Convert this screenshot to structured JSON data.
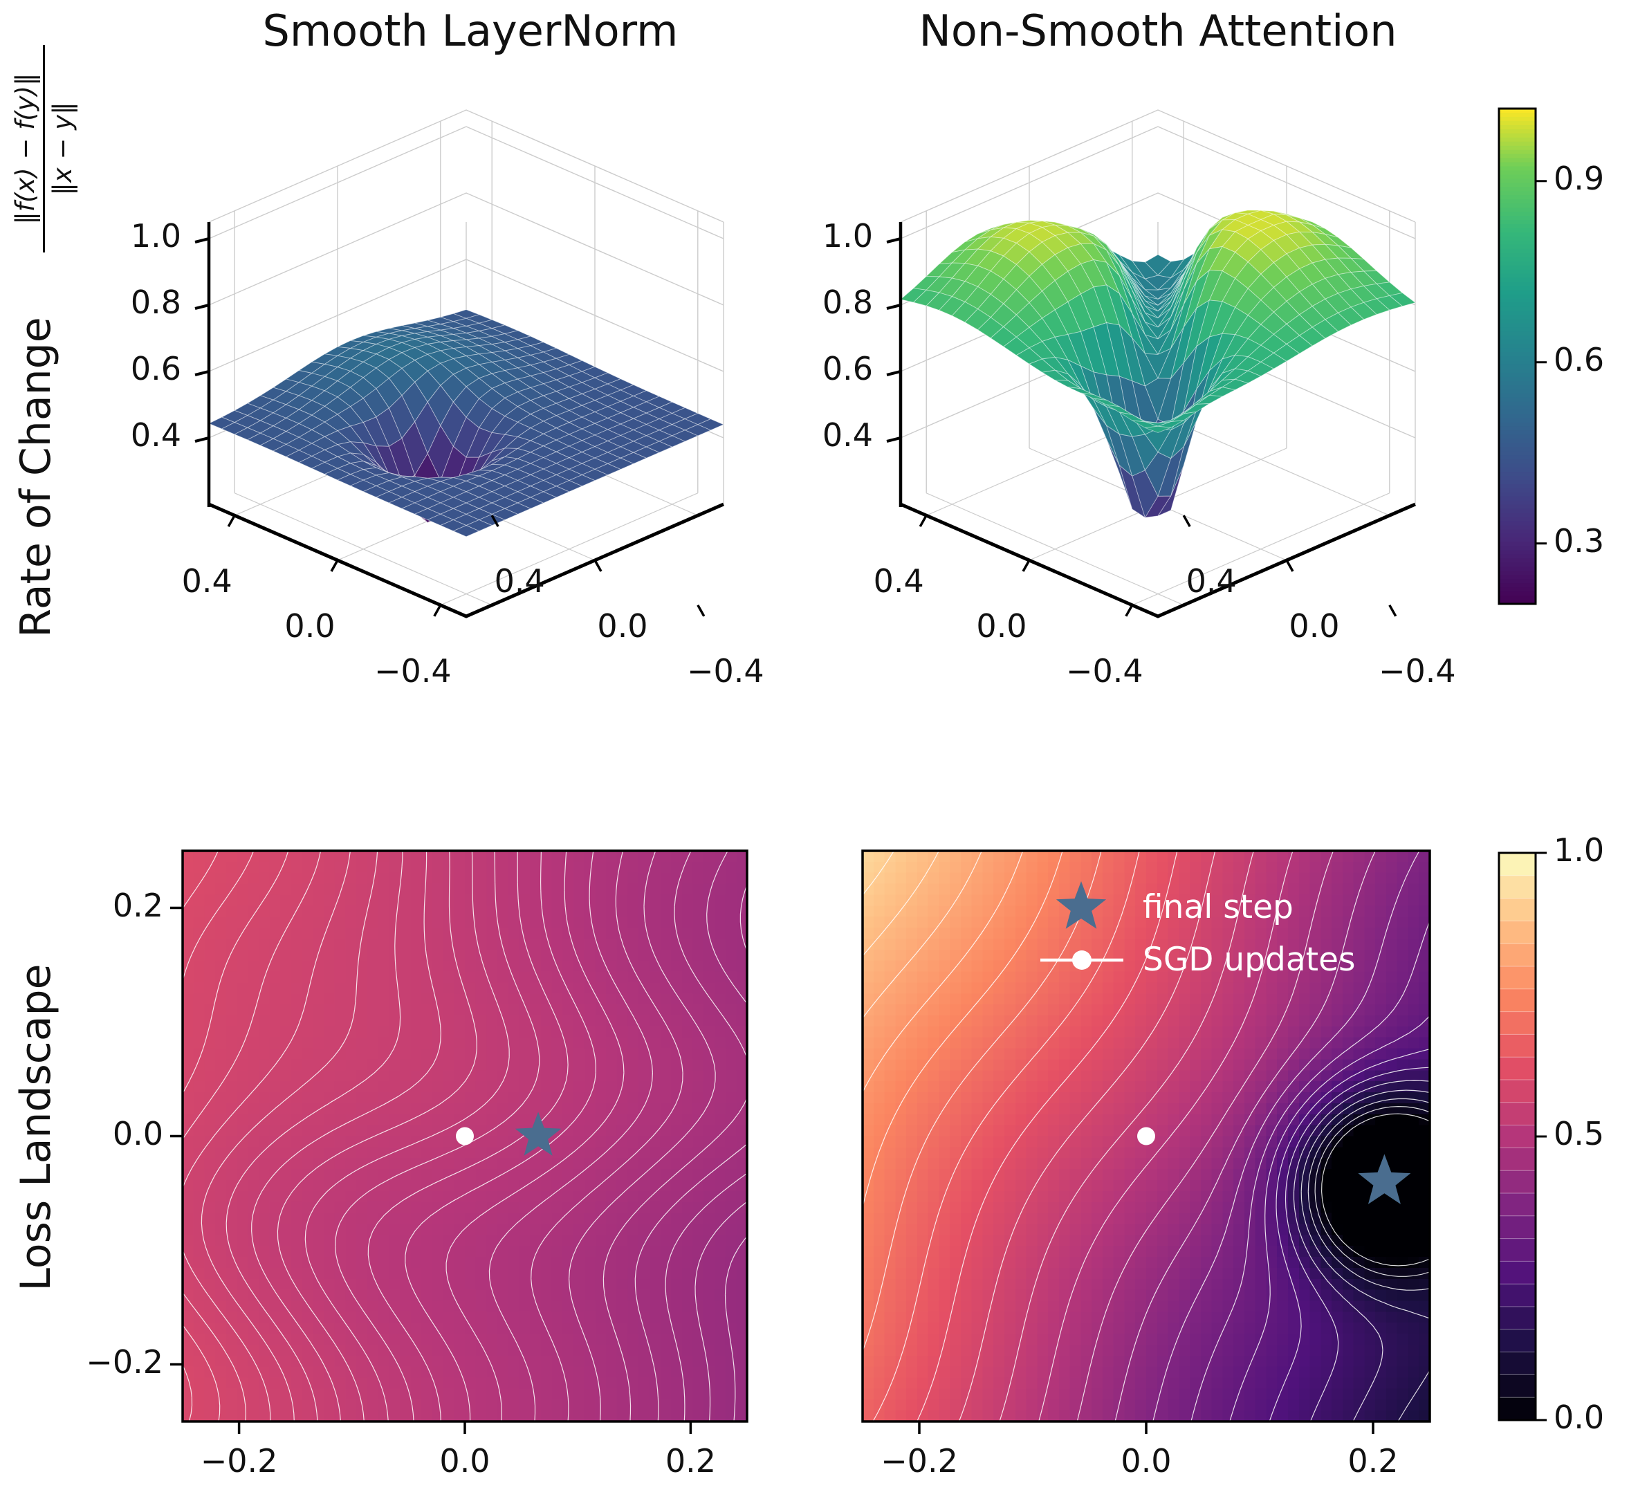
{
  "figure": {
    "background": "#ffffff",
    "row_labels": [
      {
        "id": "rate-of-change",
        "text": "Rate of Change"
      },
      {
        "id": "loss-landscape",
        "text": "Loss Landscape"
      }
    ],
    "formula": {
      "numerator": "‖f(x) − f(y)‖",
      "denominator": "‖x − y‖"
    }
  },
  "chart_data": [
    {
      "id": "surface-smooth-layernorm",
      "type": "surface",
      "title": "Smooth LayerNorm",
      "x_range": [
        -0.5,
        0.5
      ],
      "y_range": [
        -0.5,
        0.5
      ],
      "z_axis_range": [
        0.2,
        1.05
      ],
      "z_ticks": [
        1.0,
        0.8,
        0.6,
        0.4
      ],
      "z_tick_labels": [
        "1.0",
        "0.8",
        "0.6",
        "0.4"
      ],
      "x_tick_labels": [
        "0.4",
        "0.0",
        "−0.4"
      ],
      "y_tick_labels": [
        "−0.4",
        "0.0",
        "0.4"
      ],
      "colormap": "viridis",
      "color_norm": [
        0.2,
        1.02
      ],
      "mesh": 20,
      "z_observed_range": [
        0.18,
        0.55
      ],
      "model": {
        "base": 0.44,
        "clamp": [
          0.16,
          1.0
        ],
        "bumps": [
          {
            "x": 0.3,
            "y": 0.05,
            "amp": 0.1,
            "s2": 0.1
          },
          {
            "x": 0.02,
            "y": -0.12,
            "amp": -0.29,
            "s2": 0.02
          }
        ]
      }
    },
    {
      "id": "surface-nonsmooth-attention",
      "type": "surface",
      "title": "Non-Smooth Attention",
      "x_range": [
        -0.5,
        0.5
      ],
      "y_range": [
        -0.5,
        0.5
      ],
      "z_axis_range": [
        0.2,
        1.05
      ],
      "z_ticks": [
        1.0,
        0.8,
        0.6,
        0.4
      ],
      "z_tick_labels": [
        "1.0",
        "0.8",
        "0.6",
        "0.4"
      ],
      "x_tick_labels": [
        "0.4",
        "0.0",
        "−0.4"
      ],
      "y_tick_labels": [
        "−0.4",
        "0.0",
        "0.4"
      ],
      "colormap": "viridis",
      "color_norm": [
        0.2,
        1.02
      ],
      "mesh": 20,
      "z_observed_range": [
        0.3,
        0.99
      ],
      "model": {
        "base": 0.78,
        "clamp": [
          0.3,
          0.99
        ],
        "bumps": [
          {
            "x": 0.32,
            "y": -0.18,
            "amp": 0.2,
            "s2": 0.08
          },
          {
            "x": -0.1,
            "y": 0.28,
            "amp": 0.22,
            "s2": 0.1
          },
          {
            "x": -0.15,
            "y": -0.2,
            "amp": -0.42,
            "s2": 0.025
          },
          {
            "x": 0.45,
            "y": 0.45,
            "amp": -0.12,
            "s2": 0.06
          }
        ],
        "crease": {
          "amp": -0.3,
          "s2": 0.018,
          "mod_center": 0.1,
          "mod_s2": 0.5
        }
      }
    },
    {
      "id": "contour-loss-layernorm",
      "type": "contour",
      "x_range": [
        -0.25,
        0.25
      ],
      "y_range": [
        -0.25,
        0.25
      ],
      "x_ticks": [
        -0.2,
        0.0,
        0.2
      ],
      "x_tick_labels": [
        "−0.2",
        "0.0",
        "0.2"
      ],
      "y_ticks": [
        0.2,
        0.0,
        -0.2
      ],
      "y_tick_labels": [
        "0.2",
        "0.0",
        "−0.2"
      ],
      "colormap": "magma",
      "levels": {
        "min": 0.425,
        "max": 0.605,
        "count": 24
      },
      "field": {
        "base": 0.515,
        "gx": -0.068,
        "gy": 0.012,
        "waves": [
          {
            "amp": 0.013,
            "fy": 3.2,
            "fx": 1.1,
            "ph": 0.0
          },
          {
            "amp": 0.006,
            "fy": 6.1,
            "fx": 0.0,
            "ph": 0.6
          },
          {
            "amp": 0.004,
            "fy": 2.0,
            "fx": 4.0,
            "ph": 1.0
          }
        ]
      },
      "markers": {
        "sgd_point": [
          0.0,
          0.0
        ],
        "final_step": [
          0.065,
          0.0
        ]
      }
    },
    {
      "id": "contour-loss-attention",
      "type": "contour",
      "x_range": [
        -0.25,
        0.25
      ],
      "y_range": [
        -0.25,
        0.25
      ],
      "x_ticks": [
        -0.2,
        0.0,
        0.2
      ],
      "x_tick_labels": [
        "−0.2",
        "0.0",
        "0.2"
      ],
      "y_ticks": [],
      "y_tick_labels": [],
      "colormap": "magma",
      "levels": {
        "min": 0.02,
        "max": 0.98,
        "count": 25
      },
      "field": {
        "base": 0.52,
        "gx": -0.26,
        "gy": 0.13,
        "well": {
          "x": 0.21,
          "y": -0.04,
          "amp": -0.55,
          "s2": 0.006
        },
        "waves": [
          {
            "amp": 0.02,
            "fy": 3.0,
            "fx": 2.0,
            "ph": 0.0
          }
        ]
      },
      "markers": {
        "sgd_point": [
          0.0,
          0.0
        ],
        "final_step": [
          0.21,
          -0.04
        ]
      },
      "legend": [
        {
          "marker": "star",
          "label": "final step"
        },
        {
          "marker": "line-dot",
          "label": "SGD updates"
        }
      ]
    }
  ],
  "colorbars": [
    {
      "id": "colorbar-rate-of-change",
      "colormap": "viridis",
      "style": "continuous",
      "range": [
        0.2,
        1.02
      ],
      "ticks": [
        {
          "value": 0.9,
          "label": "0.9"
        },
        {
          "value": 0.6,
          "label": "0.6"
        },
        {
          "value": 0.3,
          "label": "0.3"
        }
      ]
    },
    {
      "id": "colorbar-loss",
      "colormap": "magma",
      "style": "discrete",
      "bands": 25,
      "range": [
        0.0,
        1.0
      ],
      "ticks": [
        {
          "value": 1.0,
          "label": "1.0"
        },
        {
          "value": 0.5,
          "label": "0.5"
        },
        {
          "value": 0.0,
          "label": "0.0"
        }
      ]
    }
  ],
  "colors": {
    "star": "#4a6d8f",
    "sgd_dot": "#ffffff",
    "contour_line": "#ffffff",
    "legend_text": "#ffffff",
    "axis": "#000000",
    "grid3d": "#cccccc",
    "text": "#1a1a1a",
    "viridis_stops": [
      [
        0.0,
        "#440154"
      ],
      [
        0.13,
        "#482878"
      ],
      [
        0.25,
        "#3e4a89"
      ],
      [
        0.38,
        "#31688e"
      ],
      [
        0.5,
        "#26828e"
      ],
      [
        0.63,
        "#1f9e89"
      ],
      [
        0.75,
        "#35b779"
      ],
      [
        0.88,
        "#6ece58"
      ],
      [
        1.0,
        "#fde725"
      ]
    ],
    "magma_stops": [
      [
        0.0,
        "#000004"
      ],
      [
        0.13,
        "#1c1044"
      ],
      [
        0.25,
        "#4f127b"
      ],
      [
        0.38,
        "#812581"
      ],
      [
        0.5,
        "#b5367a"
      ],
      [
        0.63,
        "#e55064"
      ],
      [
        0.75,
        "#fb8761"
      ],
      [
        0.88,
        "#fec287"
      ],
      [
        1.0,
        "#fcfdbf"
      ]
    ]
  }
}
